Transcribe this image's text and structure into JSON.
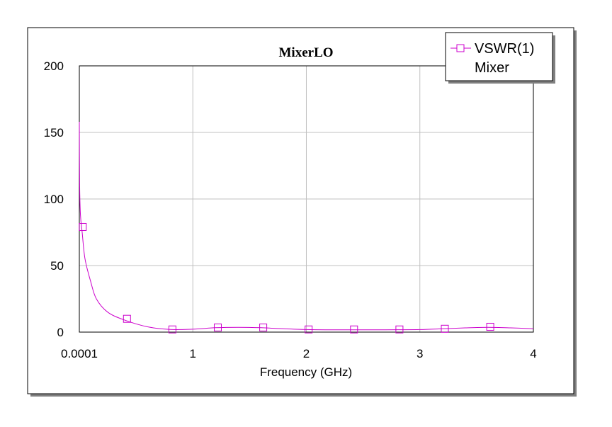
{
  "chart_data": {
    "type": "line",
    "title": "MixerLO",
    "xlabel": "Frequency (GHz)",
    "ylabel": "",
    "xlim": [
      0.0001,
      4
    ],
    "ylim": [
      0,
      200
    ],
    "grid": true,
    "legend_position": "top-right",
    "x_tick_labels": [
      "0.0001",
      "1",
      "2",
      "3",
      "4"
    ],
    "y_tick_labels": [
      "0",
      "50",
      "100",
      "150",
      "200"
    ],
    "series": [
      {
        "name": "VSWR(1)",
        "sublabel": "Mixer",
        "color": "#cc00cc",
        "marker": "square",
        "x": [
          0.0001,
          0.003,
          0.01,
          0.025,
          0.05,
          0.1,
          0.15,
          0.25,
          0.4,
          0.6,
          0.8,
          1.0,
          1.2,
          1.4,
          1.6,
          1.8,
          2.0,
          2.2,
          2.4,
          2.6,
          2.8,
          3.0,
          3.2,
          3.4,
          3.6,
          3.8,
          4.0
        ],
        "y": [
          158,
          110,
          88,
          75,
          55,
          38,
          25,
          15,
          9,
          4,
          2,
          2.2,
          3.3,
          3.6,
          3.3,
          2.5,
          1.9,
          1.7,
          1.7,
          1.7,
          1.8,
          1.9,
          2.5,
          3.2,
          3.6,
          3.2,
          2.5
        ],
        "marker_x": [
          0.03,
          0.42,
          0.82,
          1.22,
          1.62,
          2.02,
          2.42,
          2.82,
          3.22,
          3.62
        ],
        "marker_y": [
          79,
          10,
          2,
          3.5,
          3.5,
          2,
          2,
          2,
          2.5,
          4
        ]
      }
    ]
  }
}
